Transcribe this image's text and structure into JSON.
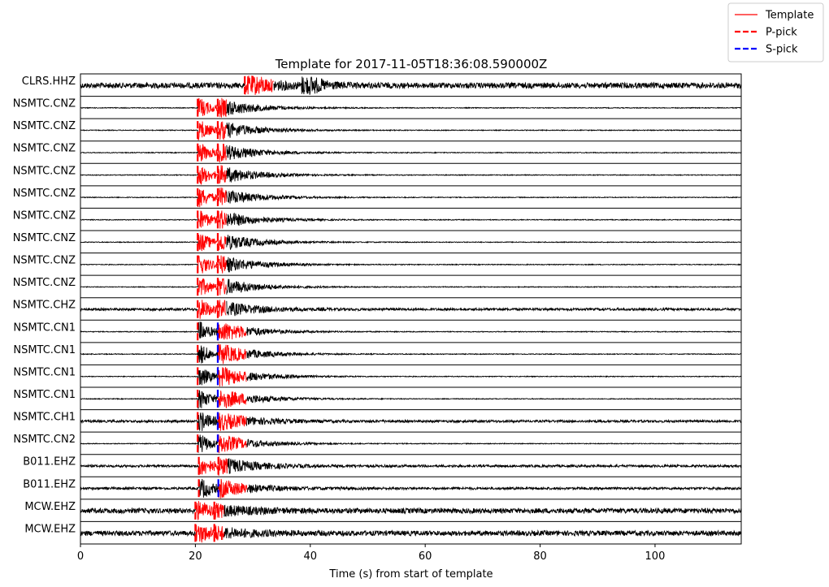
{
  "chart_data": {
    "type": "line",
    "title": "Template for 2017-11-05T18:36:08.590000Z",
    "xlabel": "Time (s) from start of template",
    "ylabel": "",
    "xlim": [
      0,
      115
    ],
    "xticks": [
      0,
      20,
      40,
      60,
      80,
      100
    ],
    "grid": false,
    "legend": {
      "placement": "top-right",
      "entries": [
        {
          "label": "Template",
          "color": "#ff0000",
          "style": "solid"
        },
        {
          "label": "P-pick",
          "color": "#ff0000",
          "style": "dashed"
        },
        {
          "label": "S-pick",
          "color": "#0000ff",
          "style": "dashed"
        }
      ]
    },
    "colors": {
      "trace": "#000000",
      "template": "#ff0000",
      "p_pick": "#ff0000",
      "s_pick": "#0000ff"
    },
    "traces": [
      {
        "label": "CLRS.HHZ",
        "p_pick": 28.6,
        "s_pick": null,
        "template_window": [
          28.6,
          33.6
        ],
        "noise": 0.28,
        "coda": 1.0,
        "second_burst": 38.5
      },
      {
        "label": "NSMTC.CNZ",
        "p_pick": 20.4,
        "s_pick": 23.9,
        "template_window": [
          20.4,
          25.4
        ],
        "noise": 0.04,
        "coda": 0.9
      },
      {
        "label": "NSMTC.CNZ",
        "p_pick": 20.4,
        "s_pick": 23.9,
        "template_window": [
          20.4,
          25.4
        ],
        "noise": 0.04,
        "coda": 0.9
      },
      {
        "label": "NSMTC.CNZ",
        "p_pick": 20.4,
        "s_pick": 23.9,
        "template_window": [
          20.4,
          25.4
        ],
        "noise": 0.04,
        "coda": 0.9
      },
      {
        "label": "NSMTC.CNZ",
        "p_pick": 20.4,
        "s_pick": 23.9,
        "template_window": [
          20.4,
          25.4
        ],
        "noise": 0.04,
        "coda": 0.9
      },
      {
        "label": "NSMTC.CNZ",
        "p_pick": 20.4,
        "s_pick": 23.9,
        "template_window": [
          20.4,
          25.4
        ],
        "noise": 0.04,
        "coda": 0.9
      },
      {
        "label": "NSMTC.CNZ",
        "p_pick": 20.4,
        "s_pick": 23.9,
        "template_window": [
          20.4,
          25.4
        ],
        "noise": 0.04,
        "coda": 0.9
      },
      {
        "label": "NSMTC.CNZ",
        "p_pick": 20.4,
        "s_pick": 23.9,
        "template_window": [
          20.4,
          25.4
        ],
        "noise": 0.04,
        "coda": 0.9
      },
      {
        "label": "NSMTC.CNZ",
        "p_pick": 20.4,
        "s_pick": 23.9,
        "template_window": [
          20.4,
          25.4
        ],
        "noise": 0.04,
        "coda": 0.9
      },
      {
        "label": "NSMTC.CNZ",
        "p_pick": 20.4,
        "s_pick": 23.9,
        "template_window": [
          20.4,
          25.4
        ],
        "noise": 0.04,
        "coda": 0.9
      },
      {
        "label": "NSMTC.CHZ",
        "p_pick": 20.4,
        "s_pick": 23.9,
        "template_window": [
          20.4,
          25.4
        ],
        "noise": 0.12,
        "coda": 0.8
      },
      {
        "label": "NSMTC.CN1",
        "p_pick": 20.4,
        "s_pick": 23.9,
        "template_window": [
          23.9,
          28.9
        ],
        "noise": 0.04,
        "coda": 1.0
      },
      {
        "label": "NSMTC.CN1",
        "p_pick": 20.4,
        "s_pick": 23.9,
        "template_window": [
          23.9,
          28.9
        ],
        "noise": 0.04,
        "coda": 1.0
      },
      {
        "label": "NSMTC.CN1",
        "p_pick": 20.4,
        "s_pick": 23.9,
        "template_window": [
          23.9,
          28.9
        ],
        "noise": 0.04,
        "coda": 1.0
      },
      {
        "label": "NSMTC.CN1",
        "p_pick": 20.4,
        "s_pick": 23.9,
        "template_window": [
          23.9,
          28.9
        ],
        "noise": 0.04,
        "coda": 1.0
      },
      {
        "label": "NSMTC.CH1",
        "p_pick": 20.4,
        "s_pick": 23.9,
        "template_window": [
          23.9,
          28.9
        ],
        "noise": 0.12,
        "coda": 0.8
      },
      {
        "label": "NSMTC.CN2",
        "p_pick": 20.4,
        "s_pick": 23.9,
        "template_window": [
          23.9,
          28.9
        ],
        "noise": 0.04,
        "coda": 0.9
      },
      {
        "label": "B011.EHZ",
        "p_pick": 20.6,
        "s_pick": 24.0,
        "template_window": [
          20.6,
          25.6
        ],
        "noise": 0.12,
        "coda": 0.8
      },
      {
        "label": "B011.EHZ",
        "p_pick": 20.6,
        "s_pick": 24.0,
        "template_window": [
          24.0,
          29.0
        ],
        "noise": 0.12,
        "coda": 0.8
      },
      {
        "label": "MCW.EHZ",
        "p_pick": 20.0,
        "s_pick": 23.3,
        "template_window": [
          20.0,
          25.0
        ],
        "noise": 0.25,
        "coda": 0.5
      },
      {
        "label": "MCW.EHZ",
        "p_pick": 20.0,
        "s_pick": 23.3,
        "template_window": [
          20.0,
          25.0
        ],
        "noise": 0.25,
        "coda": 0.5
      }
    ]
  }
}
